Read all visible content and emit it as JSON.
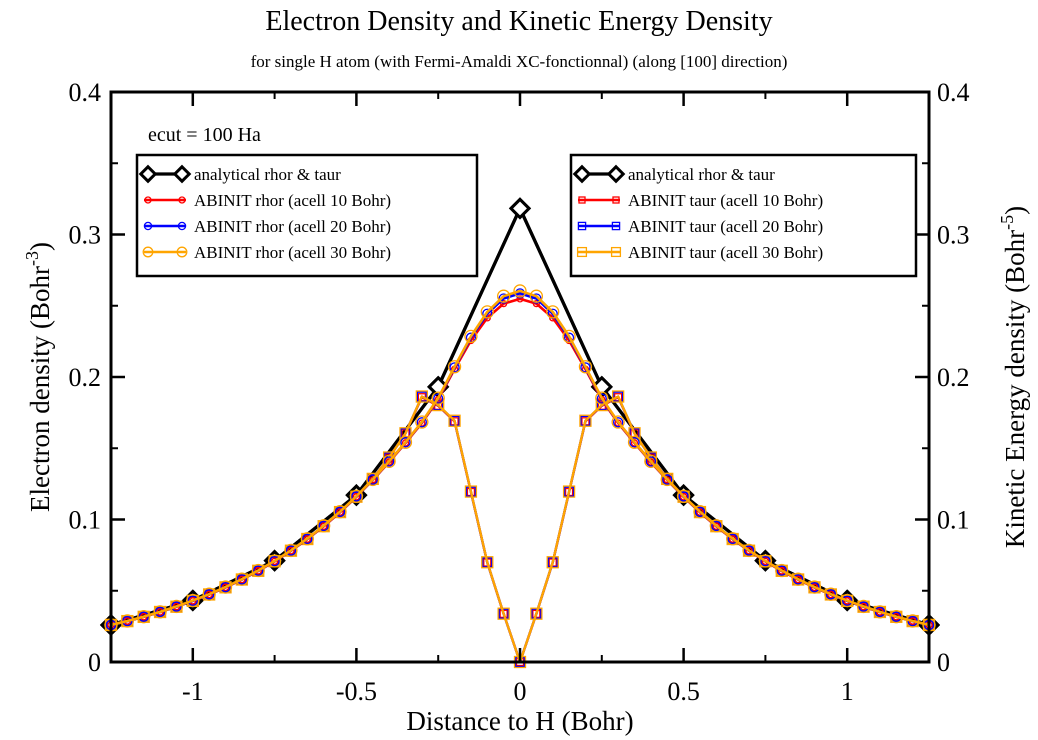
{
  "chart_data": {
    "type": "line",
    "title": "Electron Density and Kinetic Energy Density",
    "subtitle": "for single H atom (with Fermi-Amaldi XC-fonctionnal) (along [100] direction)",
    "annotation": "ecut = 100 Ha",
    "xlabel": "Distance to H (Bohr)",
    "ylabel_left": {
      "main": "Electron density (Bohr",
      "sup": "-3",
      "close": ")"
    },
    "ylabel_right": {
      "main": "Kinetic Energy density (Bohr",
      "sup": "-5",
      "close": ")"
    },
    "xlim": [
      -1.25,
      1.25
    ],
    "ylim": [
      0,
      0.4
    ],
    "xticks": [
      {
        "v": -1,
        "label": "-1"
      },
      {
        "v": -0.5,
        "label": "-0.5"
      },
      {
        "v": 0,
        "label": "0"
      },
      {
        "v": 0.5,
        "label": "0.5"
      },
      {
        "v": 1,
        "label": "1"
      }
    ],
    "yticks_left": [
      {
        "v": 0,
        "label": "0"
      },
      {
        "v": 0.1,
        "label": "0.1"
      },
      {
        "v": 0.2,
        "label": "0.2"
      },
      {
        "v": 0.3,
        "label": "0.3"
      },
      {
        "v": 0.4,
        "label": "0.4"
      }
    ],
    "yticks_right": [
      {
        "v": 0,
        "label": "0"
      },
      {
        "v": 0.1,
        "label": "0.1"
      },
      {
        "v": 0.2,
        "label": "0.2"
      },
      {
        "v": 0.3,
        "label": "0.3"
      },
      {
        "v": 0.4,
        "label": "0.4"
      }
    ],
    "grid": false,
    "legends": [
      {
        "placement": "top-left",
        "entries": [
          {
            "name": "analytical rhor & taur",
            "series": "analytical_rhor"
          },
          {
            "name": "ABINIT rhor (acell 10 Bohr)",
            "series": "rhor_10"
          },
          {
            "name": "ABINIT rhor (acell 20 Bohr)",
            "series": "rhor_20"
          },
          {
            "name": "ABINIT rhor (acell 30 Bohr)",
            "series": "rhor_30"
          }
        ]
      },
      {
        "placement": "top-right",
        "entries": [
          {
            "name": "analytical rhor & taur",
            "series": "analytical_rhor"
          },
          {
            "name": "ABINIT taur (acell 10 Bohr)",
            "series": "taur_10"
          },
          {
            "name": "ABINIT taur (acell 20 Bohr)",
            "series": "taur_20"
          },
          {
            "name": "ABINIT taur (acell 30 Bohr)",
            "series": "taur_30"
          }
        ]
      }
    ],
    "series": [
      {
        "key": "analytical_rhor",
        "color": "#000000",
        "marker": "diamond",
        "lineWidth": 3.2,
        "markerSize": 9,
        "x": [
          -1.25,
          -1.0,
          -0.75,
          -0.5,
          -0.25,
          0.0,
          0.25,
          0.5,
          0.75,
          1.0,
          1.25
        ],
        "y": [
          0.026,
          0.0432,
          0.0711,
          0.1171,
          0.1931,
          0.3183,
          0.1931,
          0.1171,
          0.0711,
          0.0432,
          0.026
        ]
      },
      {
        "key": "analytical_taur",
        "color": "#000000",
        "marker": "diamond",
        "lineWidth": 3.2,
        "markerSize": 9,
        "x": [
          -1.25,
          -1.0,
          -0.75,
          -0.5,
          -0.25,
          0.0,
          0.25,
          0.5,
          0.75,
          1.0,
          1.25
        ],
        "y": [
          0.026,
          0.0432,
          0.0711,
          0.1171,
          0.1931,
          0.3183,
          0.1931,
          0.1171,
          0.0711,
          0.0432,
          0.026
        ]
      },
      {
        "key": "rhor_10",
        "color": "#ff0000",
        "marker": "circle",
        "lineWidth": 2.6,
        "markerSize": 3,
        "x": [
          -1.25,
          -1.2,
          -1.15,
          -1.1,
          -1.05,
          -1.0,
          -0.95,
          -0.9,
          -0.85,
          -0.8,
          -0.75,
          -0.7,
          -0.65,
          -0.6,
          -0.55,
          -0.5,
          -0.45,
          -0.4,
          -0.35,
          -0.3,
          -0.25,
          -0.2,
          -0.15,
          -0.1,
          -0.05,
          0.0,
          0.05,
          0.1,
          0.15,
          0.2,
          0.25,
          0.3,
          0.35,
          0.4,
          0.45,
          0.5,
          0.55,
          0.6,
          0.65,
          0.7,
          0.75,
          0.8,
          0.85,
          0.9,
          0.95,
          1.0,
          1.05,
          1.1,
          1.15,
          1.2,
          1.25
        ],
        "y": [
          0.026,
          0.0287,
          0.0317,
          0.0351,
          0.0388,
          0.0429,
          0.0473,
          0.0523,
          0.0578,
          0.0639,
          0.0706,
          0.078,
          0.0862,
          0.0952,
          0.1051,
          0.1159,
          0.1277,
          0.1403,
          0.1537,
          0.1677,
          0.1842,
          0.2055,
          0.2256,
          0.2415,
          0.2515,
          0.2548,
          0.2515,
          0.2415,
          0.2256,
          0.2055,
          0.1842,
          0.1677,
          0.1537,
          0.1403,
          0.1277,
          0.1159,
          0.1051,
          0.0952,
          0.0862,
          0.078,
          0.0706,
          0.0639,
          0.0578,
          0.0523,
          0.0473,
          0.0429,
          0.0388,
          0.0351,
          0.0317,
          0.0287,
          0.026
        ]
      },
      {
        "key": "rhor_20",
        "color": "#0000ff",
        "marker": "circle",
        "lineWidth": 2.6,
        "markerSize": 4.5,
        "x": [
          -1.25,
          -1.2,
          -1.15,
          -1.1,
          -1.05,
          -1.0,
          -0.95,
          -0.9,
          -0.85,
          -0.8,
          -0.75,
          -0.7,
          -0.65,
          -0.6,
          -0.55,
          -0.5,
          -0.45,
          -0.4,
          -0.35,
          -0.3,
          -0.25,
          -0.2,
          -0.15,
          -0.1,
          -0.05,
          0.0,
          0.05,
          0.1,
          0.15,
          0.2,
          0.25,
          0.3,
          0.35,
          0.4,
          0.45,
          0.5,
          0.55,
          0.6,
          0.65,
          0.7,
          0.75,
          0.8,
          0.85,
          0.9,
          0.95,
          1.0,
          1.05,
          1.1,
          1.15,
          1.2,
          1.25
        ],
        "y": [
          0.026,
          0.0287,
          0.0318,
          0.0352,
          0.0389,
          0.043,
          0.0475,
          0.0525,
          0.058,
          0.0641,
          0.0708,
          0.0782,
          0.0864,
          0.0955,
          0.1054,
          0.1162,
          0.128,
          0.1407,
          0.1541,
          0.1682,
          0.1848,
          0.2067,
          0.2276,
          0.2444,
          0.2551,
          0.2587,
          0.2551,
          0.2444,
          0.2276,
          0.2067,
          0.1848,
          0.1682,
          0.1541,
          0.1407,
          0.128,
          0.1162,
          0.1054,
          0.0955,
          0.0864,
          0.0782,
          0.0708,
          0.0641,
          0.058,
          0.0525,
          0.0475,
          0.043,
          0.0389,
          0.0352,
          0.0318,
          0.0287,
          0.026
        ]
      },
      {
        "key": "rhor_30",
        "color": "#ffa500",
        "marker": "circle",
        "lineWidth": 2.6,
        "markerSize": 6,
        "x": [
          -1.25,
          -1.2,
          -1.15,
          -1.1,
          -1.05,
          -1.0,
          -0.95,
          -0.9,
          -0.85,
          -0.8,
          -0.75,
          -0.7,
          -0.65,
          -0.6,
          -0.55,
          -0.5,
          -0.45,
          -0.4,
          -0.35,
          -0.3,
          -0.25,
          -0.2,
          -0.15,
          -0.1,
          -0.05,
          0.0,
          0.05,
          0.1,
          0.15,
          0.2,
          0.25,
          0.3,
          0.35,
          0.4,
          0.45,
          0.5,
          0.55,
          0.6,
          0.65,
          0.7,
          0.75,
          0.8,
          0.85,
          0.9,
          0.95,
          1.0,
          1.05,
          1.1,
          1.15,
          1.2,
          1.25
        ],
        "y": [
          0.026,
          0.0288,
          0.0318,
          0.0352,
          0.039,
          0.0431,
          0.0476,
          0.0526,
          0.0581,
          0.0642,
          0.0709,
          0.0783,
          0.0865,
          0.0956,
          0.1055,
          0.1163,
          0.1281,
          0.1408,
          0.1542,
          0.1684,
          0.1852,
          0.2072,
          0.2285,
          0.2457,
          0.2567,
          0.2604,
          0.2567,
          0.2457,
          0.2285,
          0.2072,
          0.1852,
          0.1684,
          0.1542,
          0.1408,
          0.1281,
          0.1163,
          0.1055,
          0.0956,
          0.0865,
          0.0783,
          0.0709,
          0.0642,
          0.0581,
          0.0526,
          0.0476,
          0.0431,
          0.039,
          0.0352,
          0.0318,
          0.0288,
          0.026
        ]
      },
      {
        "key": "taur_10",
        "color": "#ff0000",
        "marker": "square",
        "lineWidth": 2.4,
        "markerSize": 3.5,
        "x": [
          -1.25,
          -1.2,
          -1.15,
          -1.1,
          -1.05,
          -1.0,
          -0.95,
          -0.9,
          -0.85,
          -0.8,
          -0.75,
          -0.7,
          -0.65,
          -0.6,
          -0.55,
          -0.5,
          -0.45,
          -0.4,
          -0.35,
          -0.3,
          -0.25,
          -0.2,
          -0.15,
          -0.1,
          -0.05,
          0.0,
          0.05,
          0.1,
          0.15,
          0.2,
          0.25,
          0.3,
          0.35,
          0.4,
          0.45,
          0.5,
          0.55,
          0.6,
          0.65,
          0.7,
          0.75,
          0.8,
          0.85,
          0.9,
          0.95,
          1.0,
          1.05,
          1.1,
          1.15,
          1.2,
          1.25
        ],
        "y": [
          0.026,
          0.0287,
          0.0317,
          0.0351,
          0.0388,
          0.0429,
          0.0474,
          0.0524,
          0.0579,
          0.064,
          0.0707,
          0.0781,
          0.0863,
          0.0953,
          0.1052,
          0.116,
          0.1285,
          0.1435,
          0.1605,
          0.1858,
          0.1798,
          0.1689,
          0.1193,
          0.0698,
          0.0338,
          0.0,
          0.0338,
          0.0698,
          0.1193,
          0.1689,
          0.1798,
          0.1858,
          0.1605,
          0.1435,
          0.1285,
          0.116,
          0.1052,
          0.0953,
          0.0863,
          0.0781,
          0.0707,
          0.064,
          0.0579,
          0.0524,
          0.0474,
          0.0429,
          0.0388,
          0.0351,
          0.0317,
          0.0287,
          0.026
        ]
      },
      {
        "key": "taur_20",
        "color": "#0000ff",
        "marker": "square",
        "lineWidth": 2.4,
        "markerSize": 4.5,
        "x": [
          -1.25,
          -1.2,
          -1.15,
          -1.1,
          -1.05,
          -1.0,
          -0.95,
          -0.9,
          -0.85,
          -0.8,
          -0.75,
          -0.7,
          -0.65,
          -0.6,
          -0.55,
          -0.5,
          -0.45,
          -0.4,
          -0.35,
          -0.3,
          -0.25,
          -0.2,
          -0.15,
          -0.1,
          -0.05,
          0.0,
          0.05,
          0.1,
          0.15,
          0.2,
          0.25,
          0.3,
          0.35,
          0.4,
          0.45,
          0.5,
          0.55,
          0.6,
          0.65,
          0.7,
          0.75,
          0.8,
          0.85,
          0.9,
          0.95,
          1.0,
          1.05,
          1.1,
          1.15,
          1.2,
          1.25
        ],
        "y": [
          0.026,
          0.0287,
          0.0317,
          0.0351,
          0.0388,
          0.0429,
          0.0474,
          0.0524,
          0.0579,
          0.064,
          0.0707,
          0.0781,
          0.0863,
          0.0953,
          0.1052,
          0.116,
          0.1285,
          0.1435,
          0.1605,
          0.1862,
          0.1802,
          0.1692,
          0.1195,
          0.0699,
          0.0339,
          0.0,
          0.0339,
          0.0699,
          0.1195,
          0.1692,
          0.1802,
          0.1862,
          0.1605,
          0.1435,
          0.1285,
          0.116,
          0.1052,
          0.0953,
          0.0863,
          0.0781,
          0.0707,
          0.064,
          0.0579,
          0.0524,
          0.0474,
          0.0429,
          0.0388,
          0.0351,
          0.0317,
          0.0287,
          0.026
        ]
      },
      {
        "key": "taur_30",
        "color": "#ffa500",
        "marker": "square",
        "lineWidth": 2.4,
        "markerSize": 5.5,
        "x": [
          -1.25,
          -1.2,
          -1.15,
          -1.1,
          -1.05,
          -1.0,
          -0.95,
          -0.9,
          -0.85,
          -0.8,
          -0.75,
          -0.7,
          -0.65,
          -0.6,
          -0.55,
          -0.5,
          -0.45,
          -0.4,
          -0.35,
          -0.3,
          -0.25,
          -0.2,
          -0.15,
          -0.1,
          -0.05,
          0.0,
          0.05,
          0.1,
          0.15,
          0.2,
          0.25,
          0.3,
          0.35,
          0.4,
          0.45,
          0.5,
          0.55,
          0.6,
          0.65,
          0.7,
          0.75,
          0.8,
          0.85,
          0.9,
          0.95,
          1.0,
          1.05,
          1.1,
          1.15,
          1.2,
          1.25
        ],
        "y": [
          0.026,
          0.0287,
          0.0317,
          0.0351,
          0.0388,
          0.0429,
          0.0474,
          0.0524,
          0.0579,
          0.064,
          0.0707,
          0.0781,
          0.0863,
          0.0953,
          0.1052,
          0.116,
          0.1285,
          0.1435,
          0.1605,
          0.1863,
          0.1803,
          0.1693,
          0.1196,
          0.07,
          0.0339,
          0.0,
          0.0339,
          0.07,
          0.1196,
          0.1693,
          0.1803,
          0.1863,
          0.1605,
          0.1435,
          0.1285,
          0.116,
          0.1052,
          0.0953,
          0.0863,
          0.0781,
          0.0707,
          0.064,
          0.0579,
          0.0524,
          0.0474,
          0.0429,
          0.0388,
          0.0351,
          0.0317,
          0.0287,
          0.026
        ]
      }
    ]
  }
}
